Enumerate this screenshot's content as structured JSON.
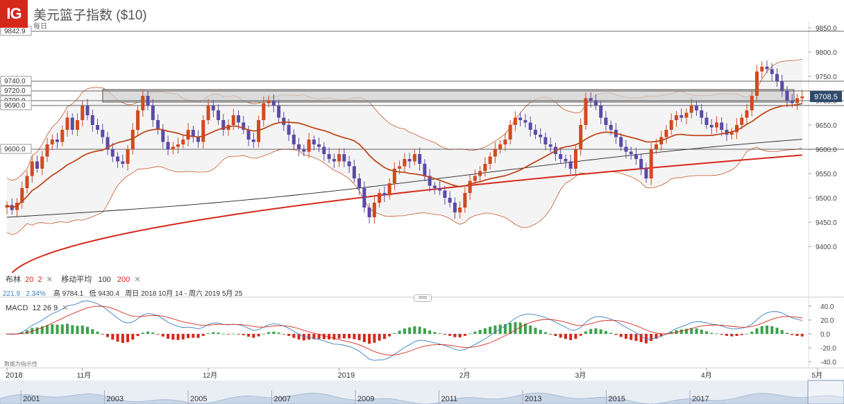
{
  "header": {
    "logo": "IG",
    "title": "美元篮子指数 ($10)",
    "interval": "每日"
  },
  "indicators": {
    "bollinger_label": "布林",
    "bollinger_period": "20",
    "bollinger_dev": "2",
    "ma_label": "移动平均",
    "ma_fast": "100",
    "ma_slow": "200",
    "close_label": "✕"
  },
  "stats": {
    "change": "221.9",
    "change_pct": "2.34%",
    "high": "高 9784.1",
    "low": "低 9430.4",
    "range": "周日 2018 10月 14 - 周六 2019 5月 25"
  },
  "macd": {
    "label": "MACD",
    "params": "12  26  9",
    "footer": "数据为指示性"
  },
  "price_labels": [
    "9842.9",
    "9740.0",
    "9720.0",
    "9700.0",
    "9690.0",
    "9600.0"
  ],
  "current_price": "9708.5",
  "navigator_years": [
    "2001",
    "2003",
    "2005",
    "2007",
    "2009",
    "2011",
    "2013",
    "2015",
    "2017"
  ],
  "colors": {
    "up": "#d14a1f",
    "down": "#5b4aa6",
    "ma20": "#c0461a",
    "ma200": "#d5281b",
    "ma100": "#222222",
    "band": "#c55a2a",
    "macd_pos": "#3aa24a",
    "macd_neg": "#d5281b"
  },
  "chart_data": [
    {
      "type": "candlestick",
      "title": "美元篮子指数 ($10)",
      "interval": "daily",
      "y_ticks": [
        9400,
        9450,
        9500,
        9550,
        9600,
        9650,
        9700,
        9750,
        9800,
        9850
      ],
      "y_tick_labels": [
        "9400.0",
        "9450.0",
        "9500.0",
        "9550.0",
        "9600.0",
        "9650.0",
        "9700.0",
        "9750.0",
        "9800.0",
        "9850.0"
      ],
      "x_tick_labels": [
        "2018",
        "11月",
        "12月",
        "2019",
        "2月",
        "3月",
        "4月",
        "5月"
      ],
      "x_tick_index": [
        0,
        15,
        40,
        66,
        91,
        114,
        139,
        161
      ],
      "ylim": [
        9370,
        9870
      ],
      "horizontal_levels": [
        9842.9,
        9740,
        9720,
        9700,
        9690,
        9600
      ],
      "resistance_zone": [
        9700,
        9720
      ],
      "current_price": 9708.5,
      "close": [
        9485,
        9475,
        9490,
        9520,
        9545,
        9575,
        9560,
        9585,
        9610,
        9620,
        9615,
        9640,
        9665,
        9640,
        9660,
        9690,
        9670,
        9650,
        9640,
        9625,
        9600,
        9585,
        9575,
        9570,
        9600,
        9640,
        9680,
        9710,
        9690,
        9660,
        9640,
        9615,
        9600,
        9605,
        9610,
        9620,
        9640,
        9625,
        9615,
        9660,
        9690,
        9680,
        9660,
        9640,
        9650,
        9670,
        9655,
        9640,
        9620,
        9615,
        9660,
        9695,
        9700,
        9690,
        9665,
        9650,
        9630,
        9610,
        9600,
        9595,
        9620,
        9610,
        9605,
        9590,
        9580,
        9575,
        9590,
        9575,
        9565,
        9540,
        9520,
        9480,
        9460,
        9490,
        9510,
        9505,
        9530,
        9560,
        9565,
        9580,
        9575,
        9590,
        9570,
        9545,
        9525,
        9520,
        9515,
        9500,
        9490,
        9470,
        9480,
        9510,
        9535,
        9545,
        9555,
        9570,
        9585,
        9600,
        9610,
        9620,
        9650,
        9665,
        9660,
        9655,
        9640,
        9630,
        9625,
        9610,
        9605,
        9590,
        9580,
        9575,
        9560,
        9600,
        9650,
        9705,
        9700,
        9690,
        9665,
        9650,
        9640,
        9625,
        9605,
        9595,
        9590,
        9580,
        9560,
        9540,
        9600,
        9610,
        9625,
        9640,
        9660,
        9670,
        9665,
        9675,
        9690,
        9680,
        9665,
        9650,
        9645,
        9655,
        9640,
        9630,
        9635,
        9650,
        9665,
        9680,
        9710,
        9760,
        9770,
        9765,
        9755,
        9740,
        9720,
        9700,
        9695,
        9705,
        9708.5
      ],
      "high": 9784.1,
      "low": 9430.4
    },
    {
      "type": "line",
      "name": "MACD",
      "params": [
        12,
        26,
        9
      ],
      "y_ticks": [
        -40,
        -20,
        0,
        20,
        40
      ],
      "y_tick_labels": [
        "-40.0",
        "-20.0",
        "0.0",
        "20.0",
        "40.0"
      ],
      "ylim": [
        -48,
        45
      ]
    },
    {
      "type": "area",
      "name": "navigator",
      "x_tick_labels": [
        "2001",
        "2003",
        "2005",
        "2007",
        "2009",
        "2011",
        "2013",
        "2015",
        "2017"
      ]
    }
  ]
}
